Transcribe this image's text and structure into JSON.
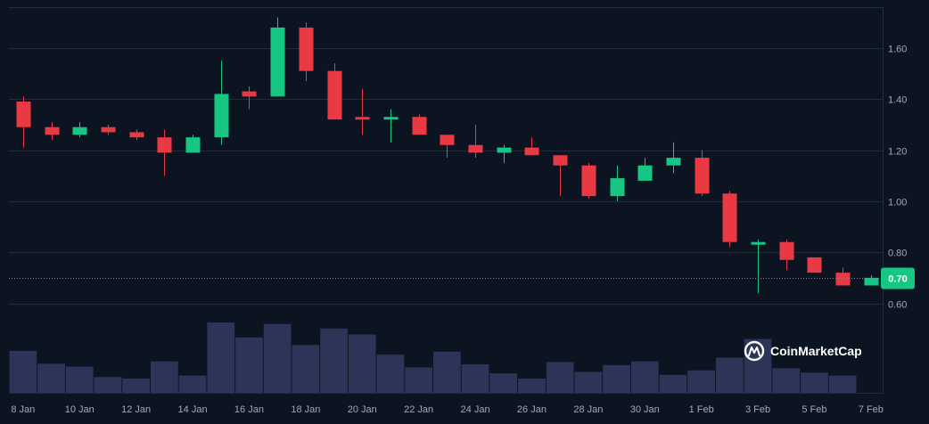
{
  "chart_data": {
    "type": "candlestick",
    "title": "",
    "xlabel": "",
    "ylabel": "",
    "x_ticks": [
      "8 Jan",
      "10 Jan",
      "12 Jan",
      "14 Jan",
      "16 Jan",
      "18 Jan",
      "20 Jan",
      "22 Jan",
      "24 Jan",
      "26 Jan",
      "28 Jan",
      "30 Jan",
      "1 Feb",
      "3 Feb",
      "5 Feb",
      "7 Feb"
    ],
    "y_ticks": [
      "0.60",
      "0.80",
      "1.00",
      "1.20",
      "1.40",
      "1.60"
    ],
    "ylim": [
      0.56,
      1.76
    ],
    "grid": true,
    "current_price_label": "0.70",
    "current_price": 0.7,
    "up_color": "#16c784",
    "down_color": "#ea3943",
    "volume_color": "#2c3558",
    "watermark": "CoinMarketCap",
    "candles": [
      {
        "date": "8 Jan",
        "open": 1.39,
        "high": 1.41,
        "low": 1.21,
        "close": 1.29
      },
      {
        "date": "9 Jan",
        "open": 1.29,
        "high": 1.31,
        "low": 1.24,
        "close": 1.26
      },
      {
        "date": "10 Jan",
        "open": 1.26,
        "high": 1.31,
        "low": 1.25,
        "close": 1.29
      },
      {
        "date": "11 Jan",
        "open": 1.29,
        "high": 1.3,
        "low": 1.26,
        "close": 1.27
      },
      {
        "date": "12 Jan",
        "open": 1.27,
        "high": 1.28,
        "low": 1.24,
        "close": 1.25
      },
      {
        "date": "13 Jan",
        "open": 1.25,
        "high": 1.28,
        "low": 1.1,
        "close": 1.19
      },
      {
        "date": "14 Jan",
        "open": 1.19,
        "high": 1.26,
        "low": 1.19,
        "close": 1.25
      },
      {
        "date": "15 Jan",
        "open": 1.25,
        "high": 1.55,
        "low": 1.22,
        "close": 1.42
      },
      {
        "date": "16 Jan",
        "open": 1.43,
        "high": 1.45,
        "low": 1.36,
        "close": 1.41
      },
      {
        "date": "17 Jan",
        "open": 1.41,
        "high": 1.72,
        "low": 1.41,
        "close": 1.68
      },
      {
        "date": "18 Jan",
        "open": 1.68,
        "high": 1.7,
        "low": 1.47,
        "close": 1.51
      },
      {
        "date": "19 Jan",
        "open": 1.51,
        "high": 1.54,
        "low": 1.32,
        "close": 1.32
      },
      {
        "date": "20 Jan",
        "open": 1.33,
        "high": 1.44,
        "low": 1.26,
        "close": 1.32
      },
      {
        "date": "21 Jan",
        "open": 1.32,
        "high": 1.36,
        "low": 1.23,
        "close": 1.33
      },
      {
        "date": "22 Jan",
        "open": 1.33,
        "high": 1.34,
        "low": 1.26,
        "close": 1.26
      },
      {
        "date": "23 Jan",
        "open": 1.26,
        "high": 1.26,
        "low": 1.17,
        "close": 1.22
      },
      {
        "date": "24 Jan",
        "open": 1.22,
        "high": 1.3,
        "low": 1.17,
        "close": 1.19
      },
      {
        "date": "25 Jan",
        "open": 1.19,
        "high": 1.22,
        "low": 1.15,
        "close": 1.21
      },
      {
        "date": "26 Jan",
        "open": 1.21,
        "high": 1.25,
        "low": 1.18,
        "close": 1.18
      },
      {
        "date": "27 Jan",
        "open": 1.18,
        "high": 1.18,
        "low": 1.02,
        "close": 1.14
      },
      {
        "date": "28 Jan",
        "open": 1.14,
        "high": 1.15,
        "low": 1.01,
        "close": 1.02
      },
      {
        "date": "29 Jan",
        "open": 1.02,
        "high": 1.14,
        "low": 1.0,
        "close": 1.09
      },
      {
        "date": "30 Jan",
        "open": 1.08,
        "high": 1.17,
        "low": 1.08,
        "close": 1.14
      },
      {
        "date": "31 Jan",
        "open": 1.14,
        "high": 1.23,
        "low": 1.11,
        "close": 1.17
      },
      {
        "date": "1 Feb",
        "open": 1.17,
        "high": 1.2,
        "low": 1.02,
        "close": 1.03
      },
      {
        "date": "2 Feb",
        "open": 1.03,
        "high": 1.04,
        "low": 0.82,
        "close": 0.84
      },
      {
        "date": "3 Feb",
        "open": 0.84,
        "high": 0.85,
        "low": 0.64,
        "close": 0.84
      },
      {
        "date": "4 Feb",
        "open": 0.84,
        "high": 0.85,
        "low": 0.73,
        "close": 0.77
      },
      {
        "date": "5 Feb",
        "open": 0.78,
        "high": 0.78,
        "low": 0.72,
        "close": 0.72
      },
      {
        "date": "6 Feb",
        "open": 0.72,
        "high": 0.74,
        "low": 0.67,
        "close": 0.67
      },
      {
        "date": "7 Feb",
        "open": 0.67,
        "high": 0.71,
        "low": 0.67,
        "close": 0.7
      }
    ],
    "volume": [
      0.56,
      0.39,
      0.35,
      0.21,
      0.19,
      0.42,
      0.23,
      0.94,
      0.74,
      0.92,
      0.64,
      0.86,
      0.78,
      0.51,
      0.34,
      0.55,
      0.38,
      0.26,
      0.19,
      0.41,
      0.28,
      0.37,
      0.42,
      0.24,
      0.3,
      0.47,
      0.72,
      0.33,
      0.27,
      0.23,
      0.0
    ]
  }
}
